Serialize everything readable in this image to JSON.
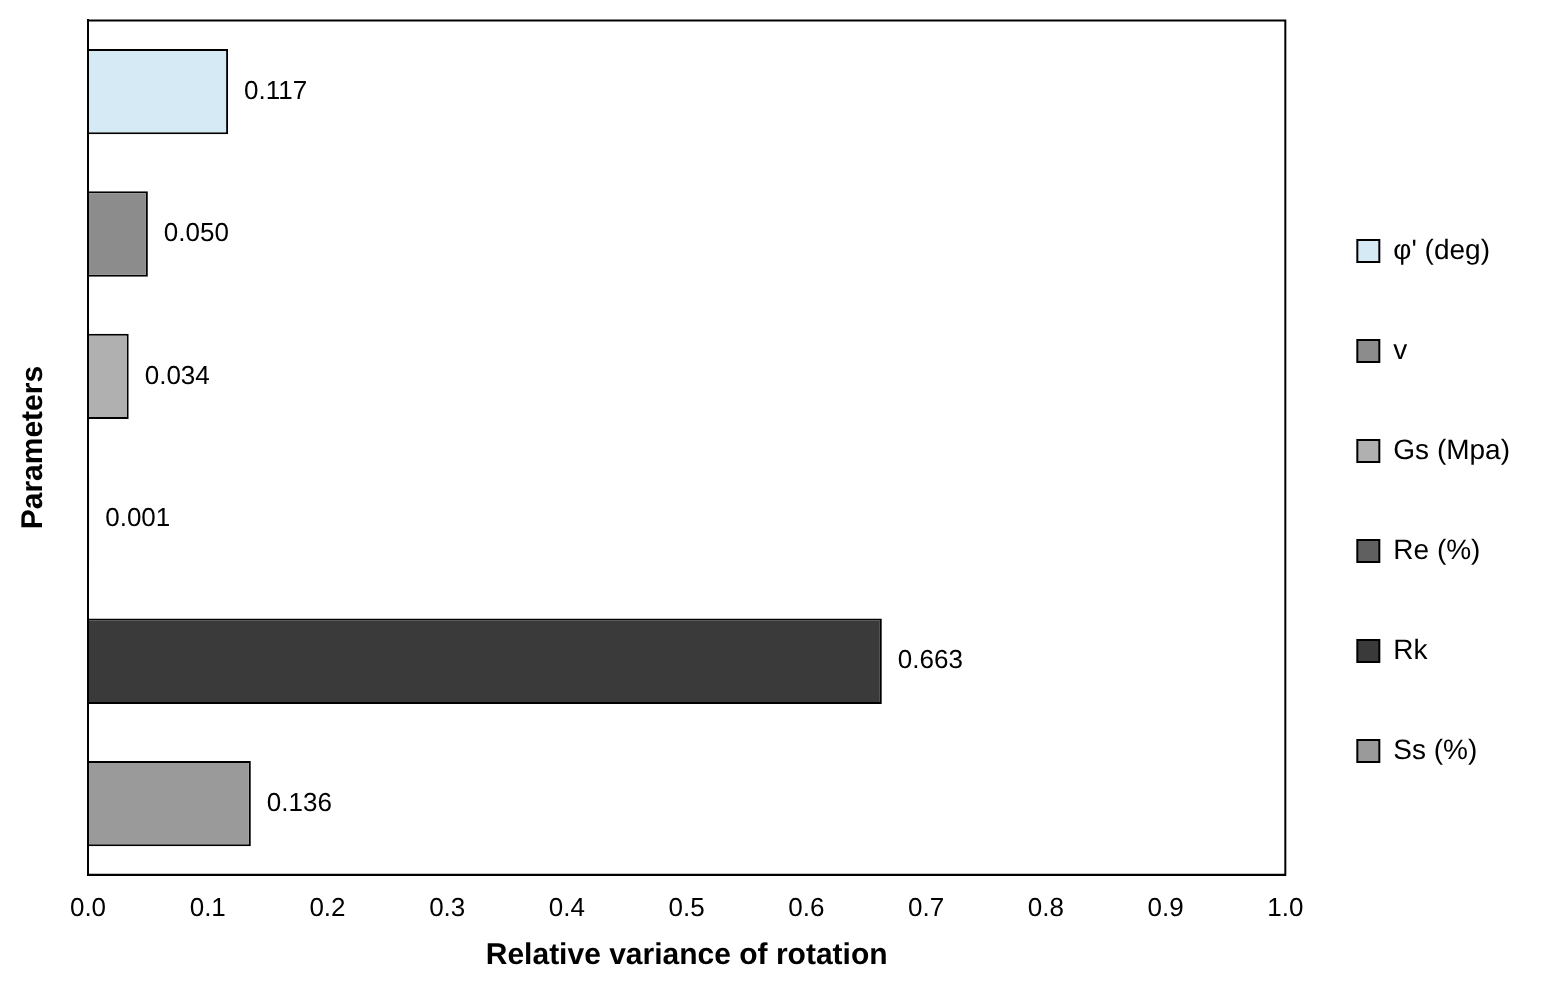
{
  "chart_data": {
    "type": "bar",
    "orientation": "horizontal",
    "xlabel": "Relative variance of rotation",
    "ylabel": "Parameters",
    "categories": [
      null,
      null,
      null,
      null,
      null,
      null
    ],
    "series": [
      {
        "name": "φ' (deg)",
        "color": "#d6eaf5",
        "values": [
          0.117,
          null,
          null,
          null,
          null,
          null
        ],
        "value_labels": [
          "0.117",
          null,
          null,
          null,
          null,
          null
        ]
      },
      {
        "name": "v",
        "color": "#8c8c8c",
        "values": [
          null,
          0.05,
          null,
          null,
          null,
          null
        ],
        "value_labels": [
          null,
          "0.050",
          null,
          null,
          null,
          null
        ]
      },
      {
        "name": "Gs (Mpa)",
        "color": "#b0b0b0",
        "values": [
          null,
          null,
          0.034,
          null,
          null,
          null
        ],
        "value_labels": [
          null,
          null,
          "0.034",
          null,
          null,
          null
        ]
      },
      {
        "name": "Re (%)",
        "color": "#606060",
        "values": [
          null,
          null,
          null,
          0.001,
          null,
          null
        ],
        "value_labels": [
          null,
          null,
          null,
          "0.001",
          null,
          null
        ]
      },
      {
        "name": "Rk",
        "color": "#3a3a3a",
        "values": [
          null,
          null,
          null,
          null,
          0.663,
          null
        ],
        "value_labels": [
          null,
          null,
          null,
          null,
          "0.663",
          null
        ]
      },
      {
        "name": "Ss (%)",
        "color": "#9a9a9a",
        "values": [
          null,
          null,
          null,
          null,
          null,
          0.136
        ],
        "value_labels": [
          null,
          null,
          null,
          null,
          null,
          "0.136"
        ]
      }
    ],
    "xlim": [
      0,
      1
    ],
    "xticks": [
      {
        "value": 0,
        "label": "0.0"
      },
      {
        "value": 0.1,
        "label": "0.1"
      },
      {
        "value": 0.2,
        "label": "0.2"
      },
      {
        "value": 0.3,
        "label": "0.3"
      },
      {
        "value": 0.4,
        "label": "0.4"
      },
      {
        "value": 0.5,
        "label": "0.5"
      },
      {
        "value": 0.6,
        "label": "0.6"
      },
      {
        "value": 0.7,
        "label": "0.7"
      },
      {
        "value": 0.8,
        "label": "0.8"
      },
      {
        "value": 0.9,
        "label": "0.9"
      },
      {
        "value": 1,
        "label": "1.0"
      }
    ],
    "grid": false,
    "legend": "right"
  }
}
